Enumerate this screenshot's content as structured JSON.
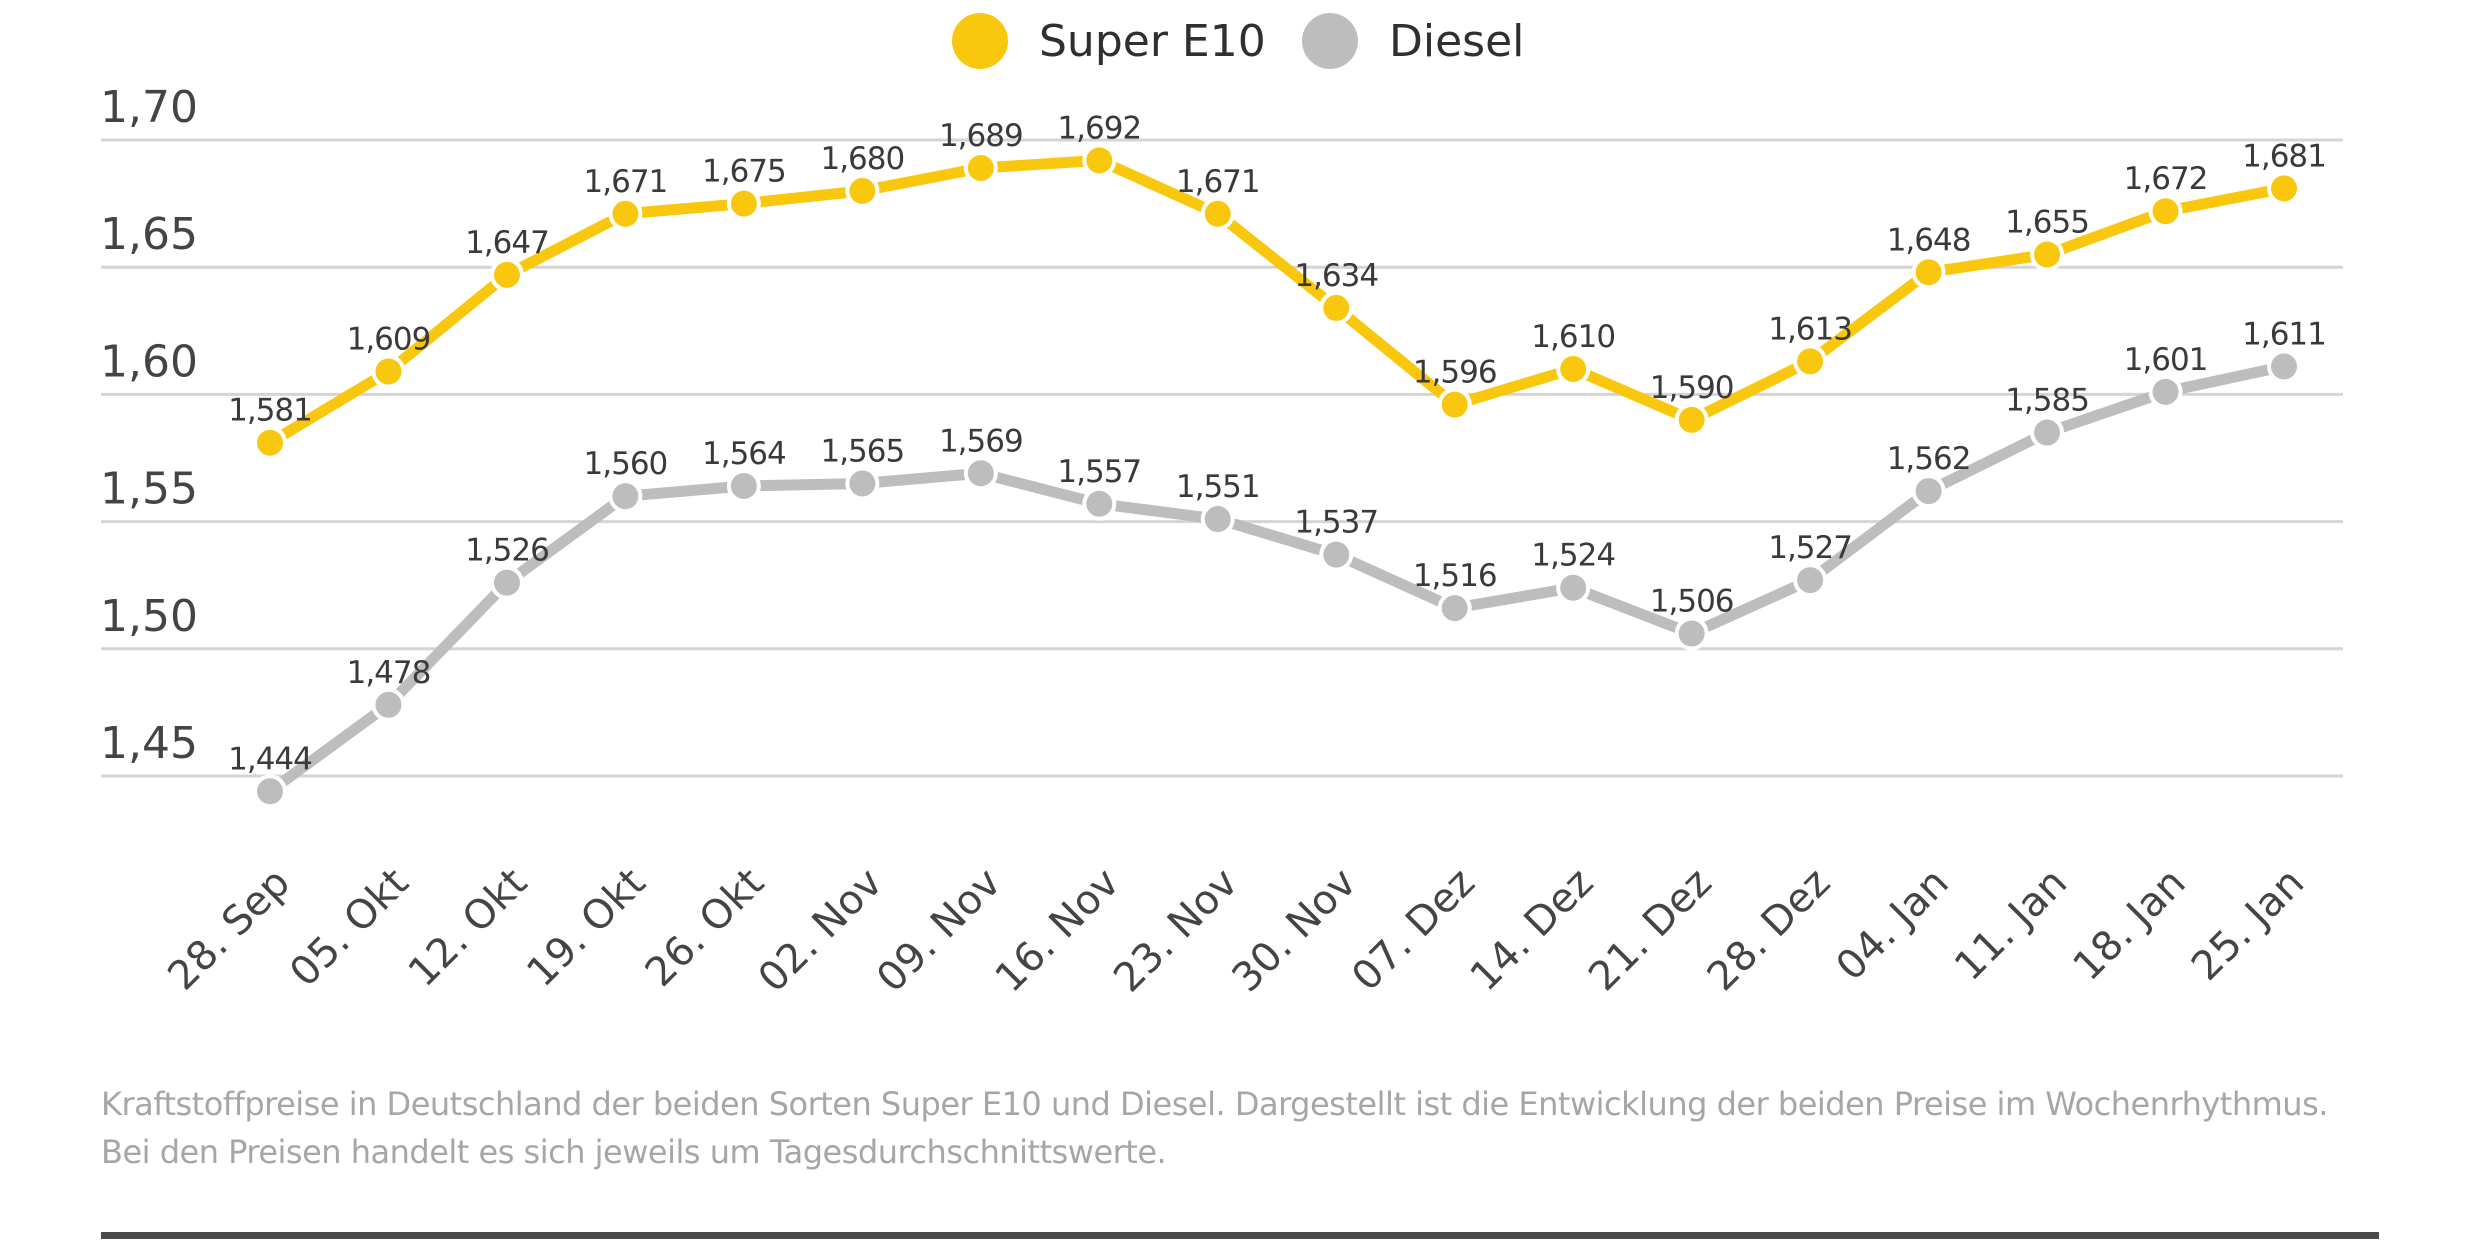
{
  "chart_data": {
    "type": "line",
    "title": "",
    "xlabel": "",
    "ylabel": "",
    "ylim": [
      1.45,
      1.7
    ],
    "yticks": [
      1.7,
      1.65,
      1.6,
      1.55,
      1.5,
      1.45
    ],
    "ytick_labels": [
      "1,70",
      "1,65",
      "1,60",
      "1,55",
      "1,50",
      "1,45"
    ],
    "grid": true,
    "legend_position": "top-center",
    "categories": [
      "28. Sep",
      "05. Okt",
      "12. Okt",
      "19. Okt",
      "26. Okt",
      "02. Nov",
      "09. Nov",
      "16. Nov",
      "23. Nov",
      "30. Nov",
      "07. Dez",
      "14. Dez",
      "21. Dez",
      "28. Dez",
      "04. Jan",
      "11. Jan",
      "18. Jan",
      "25. Jan"
    ],
    "series": [
      {
        "name": "Super E10",
        "color": "#F9C80E",
        "values": [
          1.581,
          1.609,
          1.647,
          1.671,
          1.675,
          1.68,
          1.689,
          1.692,
          1.671,
          1.634,
          1.596,
          1.61,
          1.59,
          1.613,
          1.648,
          1.655,
          1.672,
          1.681
        ],
        "labels": [
          "1,581",
          "1,609",
          "1,647",
          "1,671",
          "1,675",
          "1,680",
          "1,689",
          "1,692",
          "1,671",
          "1,634",
          "1,596",
          "1,610",
          "1,590",
          "1,613",
          "1,648",
          "1,655",
          "1,672",
          "1,681"
        ]
      },
      {
        "name": "Diesel",
        "color": "#BDBDBD",
        "values": [
          1.444,
          1.478,
          1.526,
          1.56,
          1.564,
          1.565,
          1.569,
          1.557,
          1.551,
          1.537,
          1.516,
          1.524,
          1.506,
          1.527,
          1.562,
          1.585,
          1.601,
          1.611
        ],
        "labels": [
          "1,444",
          "1,478",
          "1,526",
          "1,560",
          "1,564",
          "1,565",
          "1,569",
          "1,557",
          "1,551",
          "1,537",
          "1,516",
          "1,524",
          "1,506",
          "1,527",
          "1,562",
          "1,585",
          "1,601",
          "1,611"
        ]
      }
    ]
  },
  "caption": "Kraftstoffpreise in Deutschland der beiden Sorten Super E10 und Diesel. Dargestellt ist die Entwicklung der beiden Preise im Wochenrhythmus. Bei den Preisen handelt es sich jeweils um Tagesdurchschnittswerte.",
  "colors": {
    "gridline": "#D4D4D4",
    "text": "#444444",
    "caption": "#A6A6A6",
    "rule": "#4A4A4A"
  }
}
